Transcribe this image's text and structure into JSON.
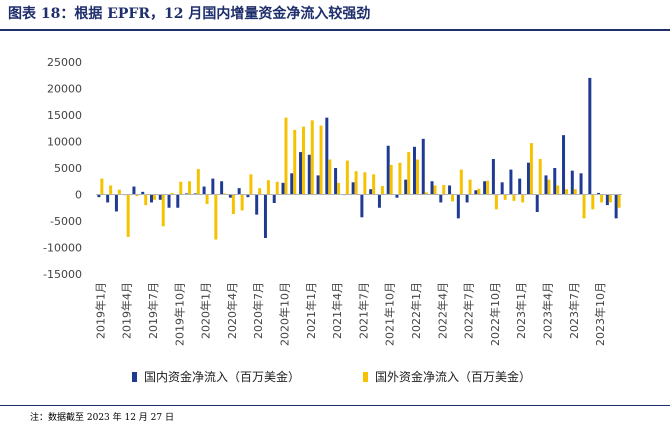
{
  "header": {
    "title": "图表 18：根据 EPFR，12 月国内增量资金净流入较强劲"
  },
  "footer": {
    "note": "注：数据截至 2023 年 12 月 27 日"
  },
  "colors": {
    "domestic": "#1f3a93",
    "foreign": "#f5c200",
    "zero_line": "#b3b3b3"
  },
  "chart_data": {
    "type": "bar",
    "title": "",
    "xlabel": "",
    "ylabel": "",
    "ylim": [
      -15000,
      25000
    ],
    "yticks": [
      25000,
      20000,
      15000,
      10000,
      5000,
      0,
      -5000,
      -10000,
      -15000
    ],
    "grid": false,
    "legend_position": "bottom",
    "tick_labels": [
      "2019年1月",
      "2019年4月",
      "2019年7月",
      "2019年10月",
      "2020年1月",
      "2020年4月",
      "2020年7月",
      "2020年10月",
      "2021年1月",
      "2021年4月",
      "2021年7月",
      "2021年10月",
      "2022年1月",
      "2022年4月",
      "2022年7月",
      "2022年10月",
      "2023年1月",
      "2023年4月",
      "2023年7月",
      "2023年10月"
    ],
    "categories": [
      "2019年1月",
      "2019年2月",
      "2019年3月",
      "2019年4月",
      "2019年5月",
      "2019年6月",
      "2019年7月",
      "2019年8月",
      "2019年9月",
      "2019年10月",
      "2019年11月",
      "2019年12月",
      "2020年1月",
      "2020年2月",
      "2020年3月",
      "2020年4月",
      "2020年5月",
      "2020年6月",
      "2020年7月",
      "2020年8月",
      "2020年9月",
      "2020年10月",
      "2020年11月",
      "2020年12月",
      "2021年1月",
      "2021年2月",
      "2021年3月",
      "2021年4月",
      "2021年5月",
      "2021年6月",
      "2021年7月",
      "2021年8月",
      "2021年9月",
      "2021年10月",
      "2021年11月",
      "2021年12月",
      "2022年1月",
      "2022年2月",
      "2022年3月",
      "2022年4月",
      "2022年5月",
      "2022年6月",
      "2022年7月",
      "2022年8月",
      "2022年9月",
      "2022年10月",
      "2022年11月",
      "2022年12月",
      "2023年1月",
      "2023年2月",
      "2023年3月",
      "2023年4月",
      "2023年5月",
      "2023年6月",
      "2023年7月",
      "2023年8月",
      "2023年9月",
      "2023年10月",
      "2023年11月",
      "2023年12月"
    ],
    "series": [
      {
        "name": "国内资金净流入（百万美金）",
        "color": "#1f3a93",
        "values": [
          -500,
          -1500,
          -3200,
          0,
          1500,
          500,
          -1500,
          -1000,
          -2500,
          -2500,
          200,
          200,
          1500,
          3000,
          2500,
          -600,
          1200,
          -500,
          -3800,
          -8200,
          -1600,
          2200,
          4000,
          8000,
          7500,
          3600,
          14500,
          5000,
          0,
          2300,
          -4300,
          1000,
          -2500,
          9200,
          -600,
          2800,
          9000,
          10500,
          2500,
          -1500,
          1700,
          -4500,
          -1500,
          800,
          2500,
          6700,
          2300,
          4700,
          3000,
          6000,
          -3300,
          3600,
          5000,
          11200,
          4500,
          4000,
          22000,
          300,
          -2000,
          -4500
        ]
      },
      {
        "name": "国外资金净流入（百万美金）",
        "color": "#f5c200",
        "values": [
          3000,
          1700,
          900,
          -8000,
          -300,
          -2000,
          -1000,
          -6000,
          300,
          2400,
          2500,
          4800,
          -1800,
          -8500,
          200,
          -3700,
          -3000,
          3800,
          1200,
          2700,
          2400,
          14500,
          12200,
          12800,
          14000,
          13000,
          6600,
          2200,
          6400,
          4400,
          4200,
          3800,
          1600,
          5600,
          6000,
          8000,
          6600,
          400,
          1700,
          1800,
          -1300,
          4700,
          2800,
          1100,
          2600,
          -2800,
          -1000,
          -1200,
          -1500,
          9700,
          6700,
          2800,
          1700,
          1000,
          1000,
          -4500,
          -2800,
          -1500,
          -1500,
          -2500
        ]
      }
    ]
  }
}
